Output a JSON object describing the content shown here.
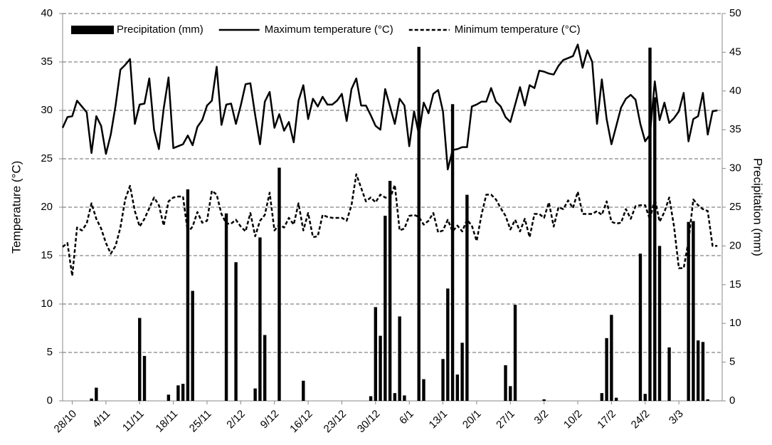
{
  "chart_data": {
    "type": "combo",
    "ylabel": "Temperature (°C)",
    "y2label": "Precipitation (mm)",
    "ylim": [
      0,
      40
    ],
    "yticks": [
      0,
      5,
      10,
      15,
      20,
      25,
      30,
      35,
      40
    ],
    "y2lim": [
      0,
      50
    ],
    "y2ticks": [
      0,
      5,
      10,
      15,
      20,
      25,
      30,
      35,
      40,
      45,
      50
    ],
    "grid": true,
    "legend": "top",
    "categories": [
      null,
      null,
      "28/10",
      null,
      null,
      null,
      null,
      null,
      null,
      "4/11",
      null,
      null,
      null,
      null,
      null,
      null,
      "11/11",
      null,
      null,
      null,
      null,
      null,
      null,
      "18/11",
      null,
      null,
      null,
      null,
      null,
      null,
      "25/11",
      null,
      null,
      null,
      null,
      null,
      null,
      "2/12",
      null,
      null,
      null,
      null,
      null,
      null,
      "9/12",
      null,
      null,
      null,
      null,
      null,
      null,
      "16/12",
      null,
      null,
      null,
      null,
      null,
      null,
      "23/12",
      null,
      null,
      null,
      null,
      null,
      null,
      "30/12",
      null,
      null,
      null,
      null,
      null,
      null,
      "6/1",
      null,
      null,
      null,
      null,
      null,
      null,
      "13/1",
      null,
      null,
      null,
      null,
      null,
      null,
      "20/1",
      null,
      null,
      null,
      null,
      null,
      null,
      "27/1",
      null,
      null,
      null,
      null,
      null,
      null,
      "3/2",
      null,
      null,
      null,
      null,
      null,
      null,
      "10/2",
      null,
      null,
      null,
      null,
      null,
      null,
      "17/2",
      null,
      null,
      null,
      null,
      null,
      null,
      "24/2",
      null,
      null,
      null,
      null,
      null,
      null,
      "3/3",
      null,
      null,
      null,
      null,
      null,
      null,
      null,
      null
    ],
    "series": [
      {
        "name": "Precipitation (mm)",
        "type": "bar",
        "axis": "y2",
        "color": "#000000",
        "values": [
          0,
          0,
          0,
          0,
          0,
          0,
          0.3,
          1.7,
          0,
          0,
          0,
          0,
          0,
          0,
          0,
          0,
          10.7,
          5.8,
          0,
          0,
          0,
          0,
          0.8,
          0,
          2.0,
          2.2,
          27.3,
          14.2,
          0,
          0,
          0,
          0,
          0,
          0,
          24.2,
          0,
          17.9,
          0,
          0,
          0,
          1.6,
          21.1,
          8.5,
          0,
          0,
          30.1,
          0,
          0,
          0,
          0,
          2.6,
          0,
          0,
          0,
          0,
          0,
          0,
          0,
          0,
          0,
          0,
          0,
          0,
          0,
          0.6,
          12.1,
          8.4,
          23.9,
          28.4,
          1.0,
          10.9,
          0.7,
          0,
          0,
          45.7,
          2.8,
          0,
          0,
          0,
          5.4,
          14.5,
          38.3,
          3.4,
          7.5,
          26.6,
          0,
          0,
          0,
          0,
          0,
          0,
          0,
          4.6,
          1.9,
          12.4,
          0,
          0,
          0,
          0,
          0,
          0.2,
          0,
          0,
          0,
          0,
          0,
          0,
          0,
          0,
          0,
          0,
          0,
          1.0,
          8.1,
          11.1,
          0.4,
          0,
          0,
          0,
          0,
          19.0,
          0.9,
          45.6,
          39.2,
          20.0,
          0,
          6.9,
          0,
          0,
          0,
          23.1,
          23.2,
          7.8,
          7.6,
          0.2,
          0,
          0
        ]
      },
      {
        "name": "Maximum temperature (°C)",
        "type": "line",
        "dash": "solid",
        "color": "#000000",
        "values": [
          28.2,
          29.3,
          29.4,
          31.0,
          30.4,
          29.8,
          25.6,
          29.4,
          28.4,
          25.5,
          27.5,
          30.5,
          34.2,
          34.7,
          35.3,
          28.6,
          30.6,
          30.7,
          33.3,
          28.0,
          26.0,
          30.2,
          33.4,
          26.1,
          26.3,
          26.5,
          27.4,
          26.4,
          28.3,
          29.0,
          30.5,
          31.0,
          34.5,
          28.5,
          30.6,
          30.7,
          28.6,
          30.5,
          32.7,
          32.8,
          29.5,
          26.5,
          30.9,
          31.9,
          28.2,
          29.6,
          27.9,
          28.8,
          26.7,
          31.0,
          32.6,
          29.1,
          31.2,
          30.4,
          31.4,
          30.6,
          30.6,
          31.0,
          31.7,
          28.9,
          32.2,
          33.3,
          30.5,
          30.5,
          29.5,
          28.4,
          28.0,
          32.2,
          30.4,
          28.6,
          31.2,
          30.5,
          26.3,
          29.9,
          27.5,
          30.8,
          29.7,
          31.7,
          32.1,
          29.9,
          23.9,
          25.9,
          26.0,
          26.2,
          26.2,
          30.4,
          30.6,
          30.9,
          30.9,
          32.3,
          30.9,
          30.4,
          29.3,
          28.8,
          30.6,
          32.4,
          30.5,
          32.6,
          32.3,
          34.1,
          34.0,
          33.8,
          33.7,
          34.6,
          35.2,
          35.4,
          35.6,
          36.8,
          34.4,
          36.2,
          35.0,
          28.6,
          33.2,
          29.1,
          26.5,
          28.4,
          30.3,
          31.2,
          31.6,
          31.1,
          28.6,
          26.8,
          27.5,
          33.0,
          29.0,
          30.8,
          28.7,
          29.2,
          29.9,
          31.8,
          26.8,
          29.1,
          29.4,
          31.8,
          27.5,
          29.9,
          30.0
        ]
      },
      {
        "name": "Minimum temperature (°C)",
        "type": "line",
        "dash": "dashed",
        "color": "#000000",
        "values": [
          15.9,
          16.3,
          12.9,
          17.9,
          17.6,
          18.3,
          20.4,
          18.8,
          17.8,
          16.3,
          15.2,
          16.0,
          17.9,
          20.8,
          22.2,
          19.6,
          18.0,
          18.8,
          19.9,
          21.0,
          20.2,
          18.1,
          20.6,
          21.0,
          21.1,
          21.1,
          17.4,
          18.0,
          19.5,
          18.4,
          18.6,
          21.7,
          21.3,
          19.3,
          18.3,
          18.3,
          18.7,
          18.0,
          17.5,
          19.4,
          17.0,
          18.6,
          19.2,
          21.5,
          17.6,
          18.2,
          17.9,
          18.9,
          18.2,
          20.4,
          17.6,
          19.4,
          16.9,
          17.0,
          19.2,
          19.0,
          18.9,
          18.9,
          18.9,
          18.6,
          20.2,
          23.4,
          22.0,
          20.6,
          21.0,
          20.5,
          21.3,
          21.0,
          20.9,
          22.3,
          17.6,
          17.8,
          19.1,
          19.2,
          19.0,
          18.2,
          18.6,
          19.4,
          17.4,
          17.6,
          18.7,
          17.5,
          18.1,
          17.5,
          18.7,
          18.1,
          16.5,
          19.2,
          21.3,
          21.3,
          20.8,
          19.9,
          19.1,
          17.7,
          18.7,
          17.5,
          18.8,
          16.9,
          19.3,
          19.3,
          18.9,
          20.5,
          18.0,
          20.0,
          19.8,
          20.7,
          19.9,
          21.6,
          19.3,
          19.3,
          19.3,
          19.6,
          19.2,
          20.6,
          18.5,
          18.3,
          18.4,
          19.8,
          18.8,
          20.1,
          20.2,
          20.2,
          18.7,
          20.9,
          18.5,
          19.5,
          21.0,
          18.0,
          13.7,
          13.7,
          16.5,
          20.8,
          20.2,
          19.8,
          19.6,
          16.0,
          16.0
        ]
      }
    ]
  }
}
